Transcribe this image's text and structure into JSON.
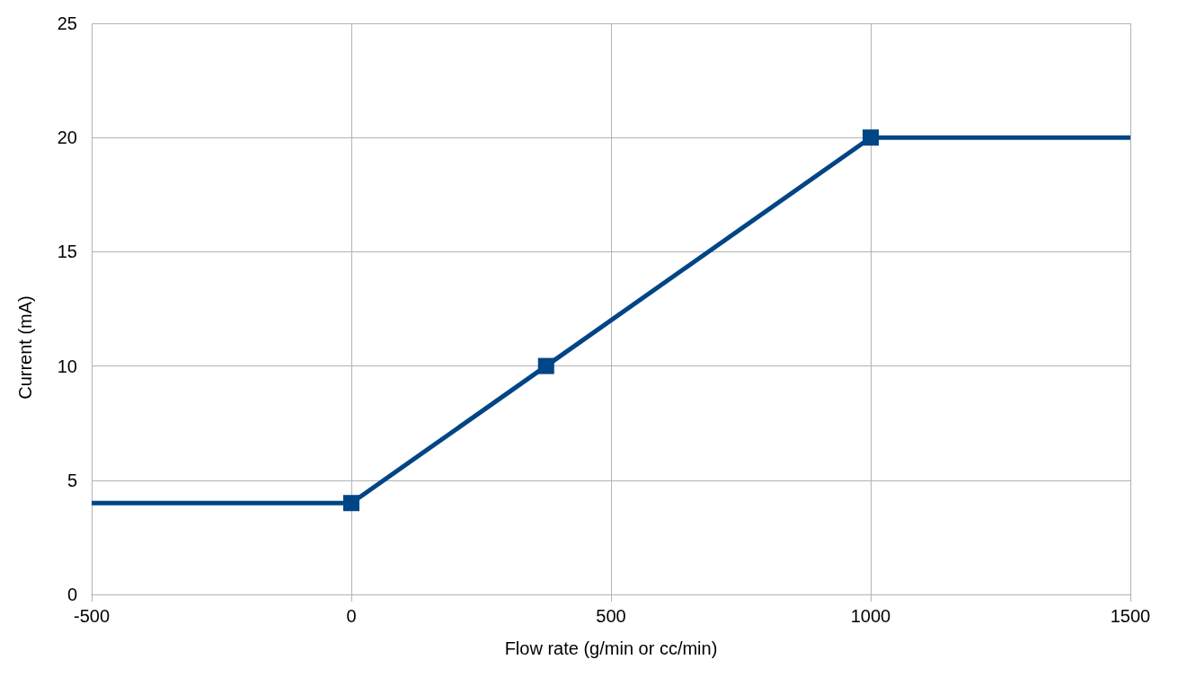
{
  "chart_data": {
    "type": "line",
    "xlabel": "Flow rate (g/min or cc/min)",
    "ylabel": "Current (mA)",
    "xlim": [
      -500,
      1500
    ],
    "xticks": [
      -500,
      0,
      500,
      1000,
      1500
    ],
    "ylim": [
      0,
      25
    ],
    "yticks": [
      0,
      5,
      10,
      15,
      20,
      25
    ],
    "grid": true,
    "line_style": "solid",
    "series": [
      {
        "color": "#004586",
        "marker": "none",
        "x": [
          -500,
          0,
          375,
          1000,
          1500
        ],
        "values": [
          4,
          4,
          10,
          20,
          20
        ]
      },
      {
        "type": "scatter",
        "color": "#004586",
        "marker": "square",
        "x": [
          0,
          375,
          1000
        ],
        "values": [
          4,
          10,
          20
        ]
      }
    ]
  }
}
